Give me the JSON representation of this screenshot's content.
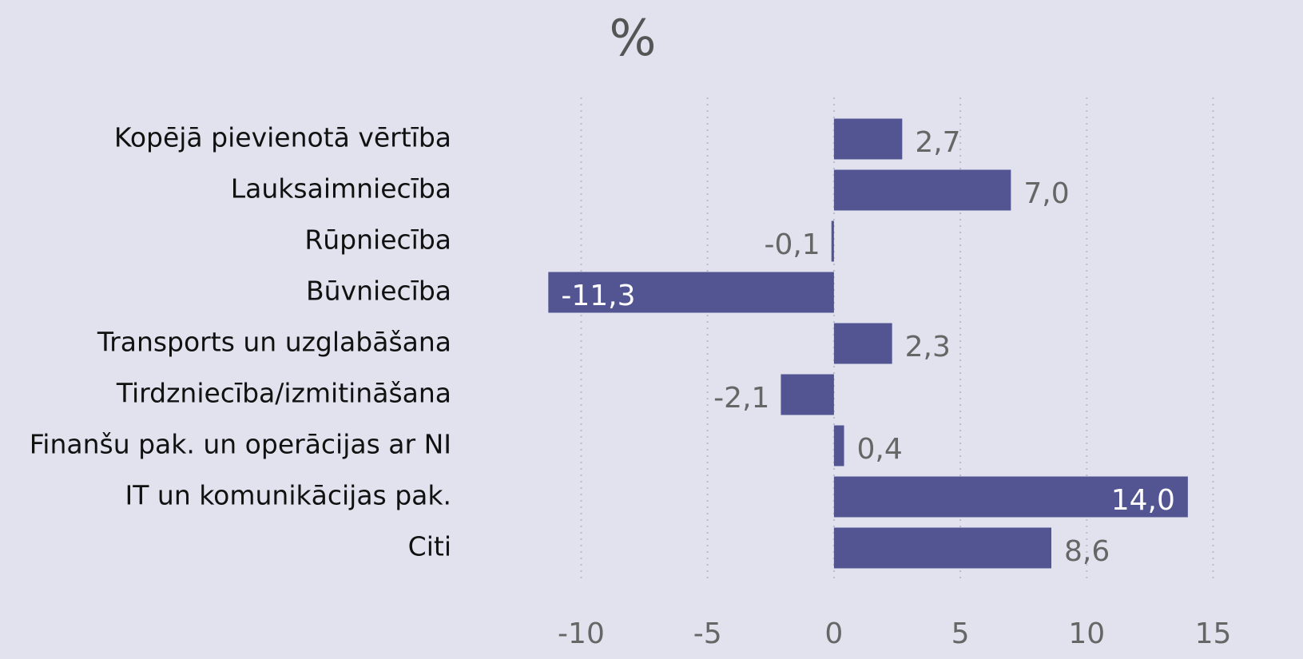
{
  "chart_data": {
    "type": "hbar",
    "title": "%",
    "categories": [
      "Kopējā pievienotā vērtība",
      "Lauksaimniecība",
      "Rūpniecība",
      "Būvniecība",
      "Transports un uzglabāšana",
      "Tirdzniecība/izmitināšana",
      "Finanšu pak. un operācijas ar NI",
      "IT un komunikācijas pak.",
      "Citi"
    ],
    "values": [
      2.7,
      7.0,
      -0.1,
      -11.3,
      2.3,
      -2.1,
      0.4,
      14.0,
      8.6
    ],
    "value_labels": [
      "2,7",
      "7,0",
      "-0,1",
      "-11,3",
      "2,3",
      "-2,1",
      "0,4",
      "14,0",
      "8,6"
    ],
    "color": "#525592",
    "xlim": [
      -11.5,
      15.3
    ],
    "xticks": [
      -10,
      -5,
      0,
      5,
      10,
      15
    ],
    "grid": true
  }
}
